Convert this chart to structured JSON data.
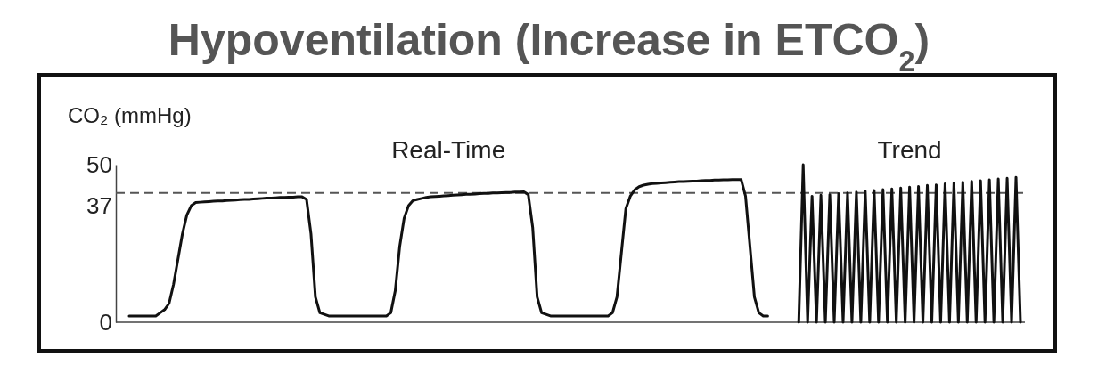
{
  "chart_data": {
    "type": "line",
    "title": "Hypoventilation (Increase in ETCO$_{2}$)",
    "ylabel": "CO₂ (mmHg)",
    "categories": [
      null,
      null,
      null,
      null,
      null,
      null,
      null,
      null,
      null,
      null,
      null,
      null,
      null,
      null,
      null,
      null,
      null,
      null,
      null,
      null,
      null,
      null,
      null,
      null,
      null,
      null,
      null,
      null,
      null,
      null,
      null,
      null,
      null,
      null,
      null,
      null,
      null,
      null,
      null,
      null,
      null,
      null,
      null,
      null,
      null,
      null,
      null,
      null,
      null,
      null,
      null,
      null,
      null,
      null,
      null,
      null,
      null,
      null,
      null,
      null,
      null,
      null,
      null,
      null,
      null,
      null,
      null,
      null,
      null,
      null,
      null,
      null,
      null,
      null,
      null,
      null,
      null,
      null,
      null,
      null,
      null,
      null,
      null,
      null,
      null,
      null,
      null,
      null,
      null,
      null,
      null,
      null,
      null,
      null,
      null,
      null,
      null,
      null,
      null,
      null,
      null,
      null,
      null,
      null,
      null,
      null,
      null,
      null,
      null,
      null,
      null,
      null,
      null,
      null,
      null,
      null,
      null,
      null,
      null,
      null,
      null,
      null,
      null,
      null,
      null,
      null,
      null,
      null,
      null,
      null,
      null,
      null,
      null,
      null,
      null,
      null,
      null,
      null,
      null,
      null,
      null,
      null,
      null,
      null,
      null,
      null,
      null,
      null,
      null,
      null,
      null,
      null,
      null,
      null,
      null,
      null,
      null,
      null,
      null,
      null,
      null,
      null,
      null,
      null,
      null,
      null,
      null,
      null,
      null,
      null,
      null,
      null,
      null,
      null,
      null,
      null,
      null,
      null,
      null,
      null,
      null,
      null,
      null,
      null,
      null,
      null,
      null,
      null,
      null,
      null,
      null,
      null,
      null,
      null,
      null,
      null,
      null,
      null,
      null,
      null,
      null,
      null,
      null,
      null
    ],
    "ylim": [
      0,
      50
    ],
    "yticks": [
      0,
      37,
      50
    ],
    "grid": false,
    "marker": "none",
    "line_style": "solid",
    "ref_lines": [
      {
        "axis": "y",
        "value": 41,
        "color": "#555555",
        "line_style": "dashed"
      }
    ],
    "series": [
      {
        "name": "Real-Time",
        "color": "#111111",
        "values": [
          null,
          null,
          2,
          2,
          2,
          2,
          2,
          2,
          2,
          3,
          4,
          6,
          12,
          20,
          28,
          34,
          37,
          38,
          38.1,
          38.2,
          38.3,
          38.4,
          38.5,
          38.5,
          38.6,
          38.7,
          38.8,
          38.9,
          39,
          39,
          39.1,
          39.2,
          39.3,
          39.4,
          39.4,
          39.5,
          39.6,
          39.6,
          39.7,
          39.7,
          39.8,
          39.8,
          39,
          28,
          8,
          3,
          2.5,
          2,
          2,
          2,
          2,
          2,
          2,
          2,
          2,
          2,
          2,
          2,
          2,
          2,
          2,
          3,
          10,
          24,
          33,
          37,
          38.6,
          39,
          39.3,
          39.6,
          39.8,
          39.9,
          40,
          40.1,
          40.2,
          40.3,
          40.4,
          40.5,
          40.6,
          40.6,
          40.7,
          40.8,
          40.9,
          40.9,
          41,
          41,
          41.1,
          41.2,
          41.2,
          41.3,
          41.3,
          41.4,
          40.5,
          30,
          8,
          3,
          2.5,
          2,
          2,
          2,
          2,
          2,
          2,
          2,
          2,
          2,
          2,
          2,
          2,
          2,
          2,
          3,
          8,
          22,
          36,
          40,
          42,
          43,
          43.5,
          43.8,
          44,
          44.1,
          44.2,
          44.3,
          44.4,
          44.5,
          44.6,
          44.6,
          44.7,
          44.8,
          44.8,
          44.9,
          45,
          45,
          45.1,
          45.1,
          45.2,
          45.2,
          45.3,
          45.3,
          45.3,
          40,
          24,
          8,
          3,
          2,
          2,
          null,
          null,
          null,
          null,
          null,
          null,
          null,
          null,
          null,
          null,
          null,
          null,
          null,
          null,
          null,
          null,
          null,
          null,
          null,
          null,
          null,
          null,
          null,
          null,
          null,
          null,
          null,
          null,
          null,
          null,
          null,
          null,
          null,
          null,
          null,
          null,
          null,
          null,
          null,
          null,
          null,
          null,
          null,
          null,
          null,
          null,
          null,
          null,
          null,
          null,
          null,
          null,
          null,
          null,
          null,
          null,
          null
        ]
      },
      {
        "name": "Trend",
        "color": "#111111",
        "values": [
          null,
          null,
          null,
          null,
          null,
          null,
          null,
          null,
          null,
          null,
          null,
          null,
          null,
          null,
          null,
          null,
          null,
          null,
          null,
          null,
          null,
          null,
          null,
          null,
          null,
          null,
          null,
          null,
          null,
          null,
          null,
          null,
          null,
          null,
          null,
          null,
          null,
          null,
          null,
          null,
          null,
          null,
          null,
          null,
          null,
          null,
          null,
          null,
          null,
          null,
          null,
          null,
          null,
          null,
          null,
          null,
          null,
          null,
          null,
          null,
          null,
          null,
          null,
          null,
          null,
          null,
          null,
          null,
          null,
          null,
          null,
          null,
          null,
          null,
          null,
          null,
          null,
          null,
          null,
          null,
          null,
          null,
          null,
          null,
          null,
          null,
          null,
          null,
          null,
          null,
          null,
          null,
          null,
          null,
          null,
          null,
          null,
          null,
          null,
          null,
          null,
          null,
          null,
          null,
          null,
          null,
          null,
          null,
          null,
          null,
          null,
          null,
          null,
          null,
          null,
          null,
          null,
          null,
          null,
          null,
          null,
          null,
          null,
          null,
          null,
          null,
          null,
          null,
          null,
          null,
          null,
          null,
          null,
          null,
          null,
          null,
          null,
          null,
          null,
          null,
          null,
          null,
          null,
          null,
          null,
          null,
          null,
          null,
          null,
          null,
          null,
          null,
          null,
          0,
          50,
          0,
          40,
          0,
          40.3,
          0,
          40.5,
          0,
          40.8,
          0,
          41,
          0,
          41.3,
          0,
          41.6,
          0,
          41.8,
          0,
          42.1,
          0,
          42.3,
          0,
          42.6,
          0,
          42.9,
          0,
          43.1,
          0,
          43.4,
          0,
          43.6,
          0,
          43.9,
          0,
          44.2,
          0,
          44.4,
          0,
          44.7,
          0,
          44.9,
          0,
          45.2,
          0,
          45.5,
          0,
          45.7,
          0,
          46,
          0
        ]
      }
    ]
  }
}
